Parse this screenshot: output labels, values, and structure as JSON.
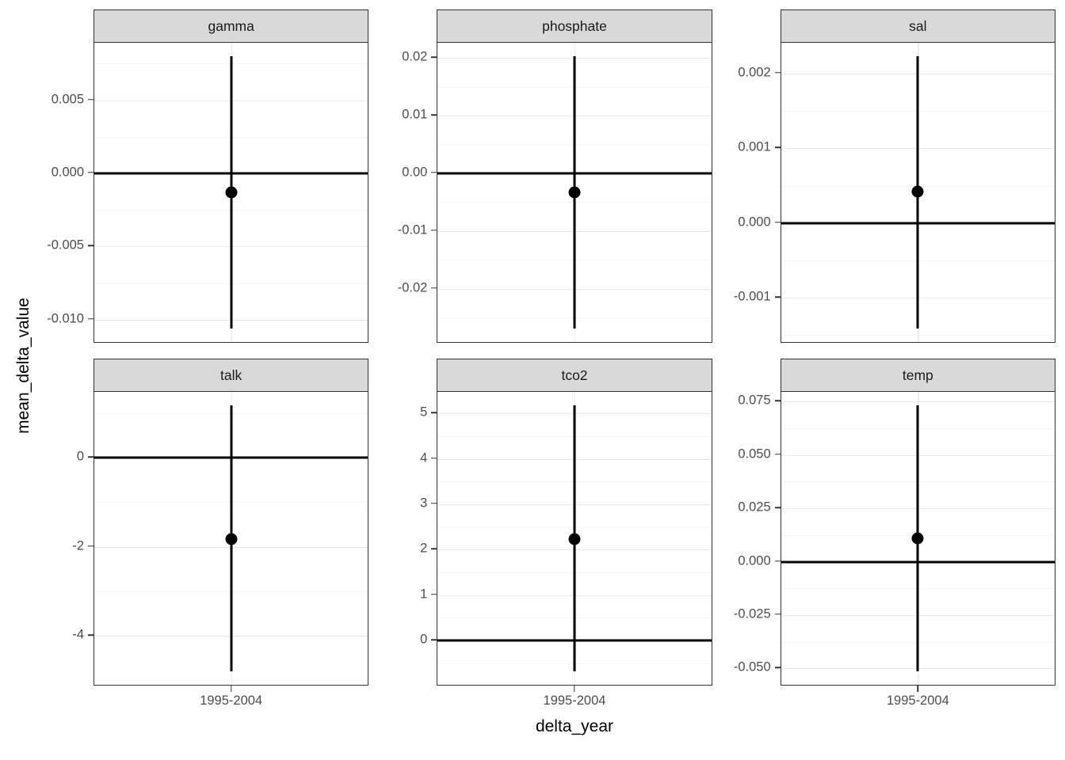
{
  "figure": {
    "y_axis_title": "mean_delta_value",
    "x_axis_title": "delta_year"
  },
  "style": {
    "strip_bg": "#d9d9d9",
    "strip_text": "#1a1a1a",
    "panel_border": "#333333",
    "grid_major": "#e9e9e9",
    "grid_minor": "#f5f5f5",
    "tick_label_color": "#4d4d4d",
    "data_color": "#000000"
  },
  "chart_data": {
    "type": "scatter",
    "subtype": "faceted-pointrange",
    "title": "",
    "xlabel": "delta_year",
    "ylabel": "mean_delta_value",
    "x_categories": [
      "1995-2004"
    ],
    "hline": 0,
    "grid": true,
    "legend": "none",
    "axis_expansion": 0.05,
    "facets": [
      {
        "label": "gamma",
        "x": "1995-2004",
        "point": -0.0013,
        "ymin": -0.0106,
        "ymax": 0.008,
        "yticks": [
          {
            "v": 0.005,
            "label": "0.005"
          },
          {
            "v": 0,
            "label": "0.000"
          },
          {
            "v": -0.005,
            "label": "-0.005"
          },
          {
            "v": -0.01,
            "label": "-0.010"
          }
        ]
      },
      {
        "label": "phosphate",
        "x": "1995-2004",
        "point": -0.0033,
        "ymin": -0.0269,
        "ymax": 0.0203,
        "yticks": [
          {
            "v": 0.02,
            "label": "0.02"
          },
          {
            "v": 0.01,
            "label": "0.01"
          },
          {
            "v": 0,
            "label": "0.00"
          },
          {
            "v": -0.01,
            "label": "-0.01"
          },
          {
            "v": -0.02,
            "label": "-0.02"
          }
        ]
      },
      {
        "label": "sal",
        "x": "1995-2004",
        "point": 0.00042,
        "ymin": -0.00141,
        "ymax": 0.00223,
        "yticks": [
          {
            "v": 0.002,
            "label": "0.002"
          },
          {
            "v": 0.001,
            "label": "0.001"
          },
          {
            "v": 0,
            "label": "0.000"
          },
          {
            "v": -0.001,
            "label": "-0.001"
          }
        ]
      },
      {
        "label": "talk",
        "x": "1995-2004",
        "point": -1.82,
        "ymin": -4.8,
        "ymax": 1.18,
        "yticks": [
          {
            "v": 0,
            "label": "0"
          },
          {
            "v": -2,
            "label": "-2"
          },
          {
            "v": -4,
            "label": "-4"
          }
        ]
      },
      {
        "label": "tco2",
        "x": "1995-2004",
        "point": 2.24,
        "ymin": -0.68,
        "ymax": 5.18,
        "yticks": [
          {
            "v": 5,
            "label": "5"
          },
          {
            "v": 4,
            "label": "4"
          },
          {
            "v": 3,
            "label": "3"
          },
          {
            "v": 2,
            "label": "2"
          },
          {
            "v": 1,
            "label": "1"
          },
          {
            "v": 0,
            "label": "0"
          }
        ]
      },
      {
        "label": "temp",
        "x": "1995-2004",
        "point": 0.011,
        "ymin": -0.0514,
        "ymax": 0.0733,
        "yticks": [
          {
            "v": 0.075,
            "label": "0.075"
          },
          {
            "v": 0.05,
            "label": "0.050"
          },
          {
            "v": 0.025,
            "label": "0.025"
          },
          {
            "v": 0,
            "label": "0.000"
          },
          {
            "v": -0.025,
            "label": "-0.025"
          },
          {
            "v": -0.05,
            "label": "-0.050"
          }
        ]
      }
    ]
  }
}
